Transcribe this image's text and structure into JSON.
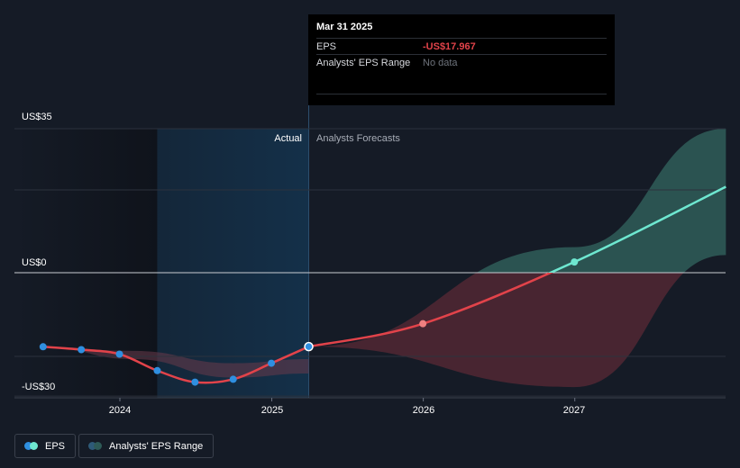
{
  "colors": {
    "background": "#151b26",
    "eps_actual": "#e2434a",
    "eps_forecast_positive": "#6ee7d0",
    "point_actual": "#2f8fe0",
    "range_band_negative": "#5a2a36",
    "range_band_positive": "#2e5a57",
    "highlight_region": "#143049"
  },
  "y_axis": {
    "top_label": "US$35",
    "zero_label": "US$0",
    "bottom_label": "-US$30"
  },
  "x_axis": {
    "labels": [
      "2024",
      "2025",
      "2026",
      "2027"
    ]
  },
  "regions": {
    "actual": "Actual",
    "forecast": "Analysts Forecasts"
  },
  "tooltip": {
    "date": "Mar 31 2025",
    "eps_label": "EPS",
    "eps_value": "-US$17.967",
    "range_label": "Analysts' EPS Range",
    "range_value": "No data"
  },
  "legend": {
    "eps": "EPS",
    "range": "Analysts' EPS Range"
  },
  "chart_data": {
    "type": "line",
    "ylim": [
      -30,
      35
    ],
    "y_tick_labels": [
      "US$35",
      "US$0",
      "-US$30"
    ],
    "x_tick_labels": [
      "2024",
      "2025",
      "2026",
      "2027"
    ],
    "series": [
      {
        "name": "EPS",
        "kind": "actual",
        "points": [
          {
            "x": "2023-06-30",
            "y": -18.0
          },
          {
            "x": "2023-09-30",
            "y": -18.7
          },
          {
            "x": "2023-12-31",
            "y": -19.8
          },
          {
            "x": "2024-03-31",
            "y": -23.8
          },
          {
            "x": "2024-06-30",
            "y": -26.6
          },
          {
            "x": "2024-09-30",
            "y": -25.9
          },
          {
            "x": "2024-12-31",
            "y": -22.0
          },
          {
            "x": "2025-03-31",
            "y": -17.967
          }
        ]
      },
      {
        "name": "EPS",
        "kind": "forecast",
        "points": [
          {
            "x": "2025-03-31",
            "y": -17.967
          },
          {
            "x": "2025-12-31",
            "y": -12.4
          },
          {
            "x": "2026-12-31",
            "y": 2.6
          },
          {
            "x": "2027-12-31",
            "y": 20.9
          }
        ]
      },
      {
        "name": "Analysts' EPS Range",
        "kind": "range",
        "upper": [
          {
            "x": "2025-03-31",
            "y": -17.967
          },
          {
            "x": "2026-12-31",
            "y": 6.2
          },
          {
            "x": "2027-12-31",
            "y": 35.0
          }
        ],
        "lower": [
          {
            "x": "2025-03-31",
            "y": -17.967
          },
          {
            "x": "2026-12-31",
            "y": -27.8
          },
          {
            "x": "2027-12-31",
            "y": 4.3
          }
        ]
      }
    ],
    "grid": true,
    "legend_position": "bottom-left"
  }
}
